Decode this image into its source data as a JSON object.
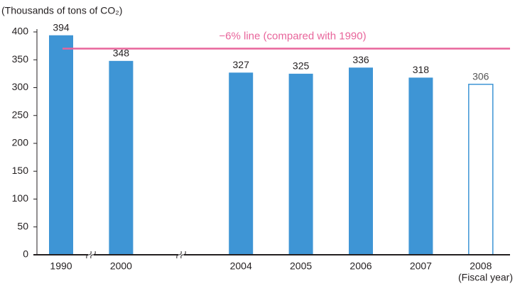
{
  "chart_data": {
    "type": "bar",
    "y_label": "(Thousands of tons of CO₂)",
    "x_label": "(Fiscal year)",
    "categories": [
      "1990",
      "2000",
      "2004",
      "2005",
      "2006",
      "2007",
      "2008"
    ],
    "values": [
      394,
      348,
      327,
      325,
      336,
      318,
      306
    ],
    "bar_styles": [
      "solid",
      "solid",
      "solid",
      "solid",
      "solid",
      "solid",
      "outline"
    ],
    "color": "#3e95d5",
    "ylim": [
      0,
      400
    ],
    "yticks": [
      0,
      50,
      100,
      150,
      200,
      250,
      300,
      350,
      400
    ],
    "grid": false,
    "reference_line": {
      "value": 370,
      "label": "−6% line (compared with 1990)",
      "color": "#e8659b"
    }
  }
}
